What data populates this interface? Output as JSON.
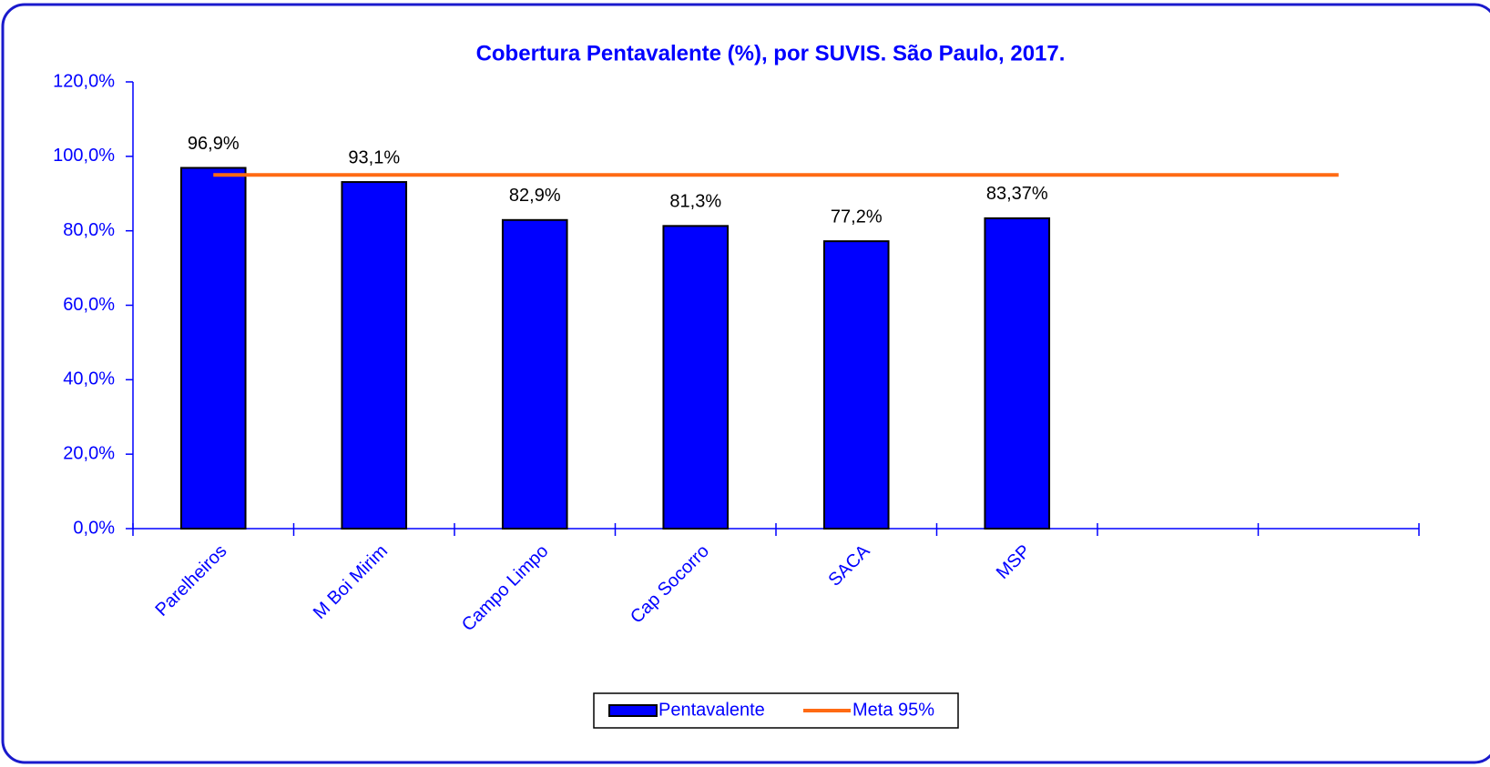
{
  "chart_data": {
    "type": "bar",
    "title": "Cobertura Pentavalente (%),  por SUVIS. São Paulo, 2017.",
    "categories": [
      "Parelheiros",
      "M Boi Mirim",
      "Campo Limpo",
      "Cap Socorro",
      "SACA",
      "MSP",
      null,
      null
    ],
    "series": [
      {
        "name": "Pentavalente",
        "type": "bar",
        "color": "#0000ff",
        "values": [
          96.9,
          93.1,
          82.9,
          81.3,
          77.2,
          83.37,
          null,
          null
        ],
        "value_labels": [
          "96,9%",
          "93,1%",
          "82,9%",
          "81,3%",
          "77,2%",
          "83,37%",
          null,
          null
        ]
      },
      {
        "name": "Meta 95%",
        "type": "line",
        "color": "#ff6a13",
        "values": [
          95,
          95,
          95,
          95,
          95,
          95,
          95,
          95
        ]
      }
    ],
    "ylim": [
      0,
      120
    ],
    "yticks": [
      {
        "value": 0,
        "label": "0,0%"
      },
      {
        "value": 20,
        "label": "20,0%"
      },
      {
        "value": 40,
        "label": "40,0%"
      },
      {
        "value": 60,
        "label": "60,0%"
      },
      {
        "value": 80,
        "label": "80,0%"
      },
      {
        "value": 100,
        "label": "100,0%"
      },
      {
        "value": 120,
        "label": "120,0%"
      }
    ],
    "axis_color": "#0000ff"
  }
}
